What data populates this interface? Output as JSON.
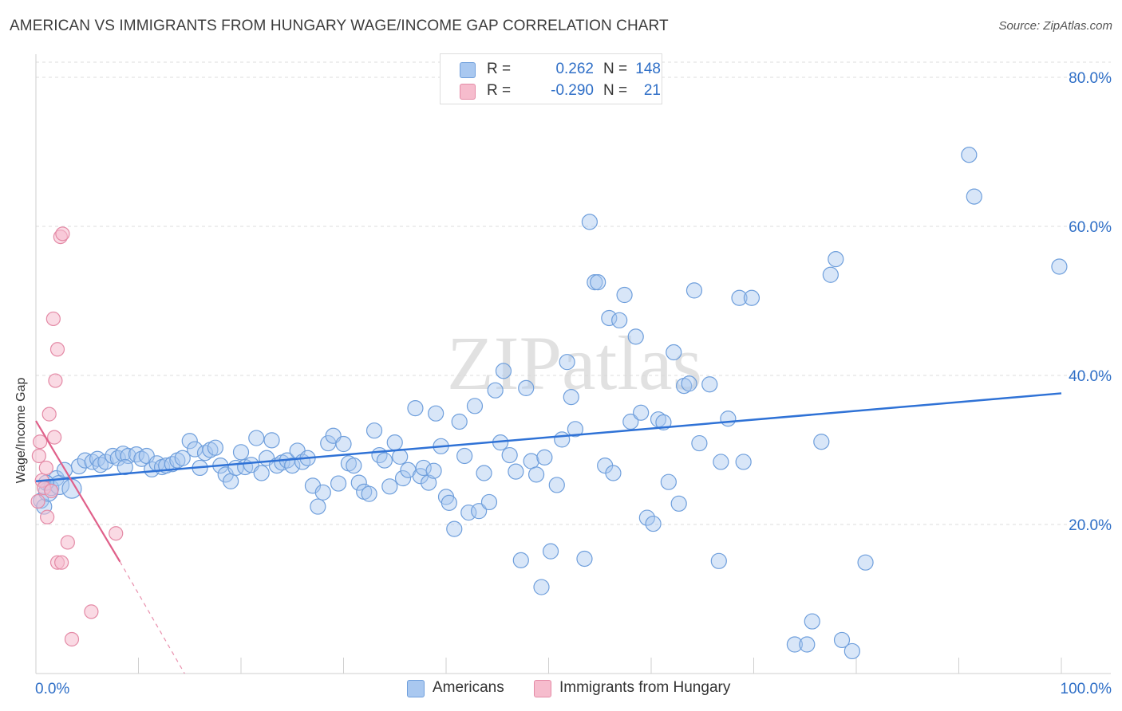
{
  "title": "AMERICAN VS IMMIGRANTS FROM HUNGARY WAGE/INCOME GAP CORRELATION CHART",
  "source": "Source: ZipAtlas.com",
  "watermark": "ZIPatlas",
  "legend_stats": [
    {
      "label_r": "R =",
      "r": "0.262",
      "label_n": "N =",
      "n": "148",
      "color": "#a9c8f0",
      "border": "#6f9fdc"
    },
    {
      "label_r": "R =",
      "r": "-0.290",
      "label_n": "N =",
      "n": "21",
      "color": "#f6bccd",
      "border": "#e48aa6"
    }
  ],
  "legend_series": [
    {
      "name": "Americans",
      "color": "#a9c8f0",
      "border": "#6f9fdc"
    },
    {
      "name": "Immigrants from Hungary",
      "color": "#f6bccd",
      "border": "#e48aa6"
    }
  ],
  "chart_data": {
    "type": "scatter",
    "title": "AMERICAN VS IMMIGRANTS FROM HUNGARY WAGE/INCOME GAP CORRELATION CHART",
    "xlabel": "",
    "ylabel": "Wage/Income Gap",
    "xlim": [
      0,
      100
    ],
    "ylim": [
      0,
      80
    ],
    "x_tick_labels": [
      "0.0%",
      "100.0%"
    ],
    "y_tick_labels": [
      {
        "value": 20,
        "label": "20.0%"
      },
      {
        "value": 40,
        "label": "40.0%"
      },
      {
        "value": 60,
        "label": "60.0%"
      },
      {
        "value": 80,
        "label": "80.0%"
      }
    ],
    "series": [
      {
        "name": "Americans",
        "color": "#6f9fdc",
        "fill": "#a9c8f0",
        "trend": {
          "x0": 0,
          "y0": 25.8,
          "x1": 100,
          "y1": 37.6,
          "color": "#2f72d6"
        },
        "points": [
          [
            0.5,
            23.2
          ],
          [
            0.8,
            22.4
          ],
          [
            1.2,
            24.4
          ],
          [
            1.5,
            24.9
          ],
          [
            2.0,
            26.2
          ],
          [
            2.3,
            25.3
          ],
          [
            2.8,
            27.3
          ],
          [
            3.5,
            24.8
          ],
          [
            4.2,
            27.8
          ],
          [
            4.8,
            28.6
          ],
          [
            5.5,
            28.4
          ],
          [
            6.0,
            28.8
          ],
          [
            6.3,
            28.0
          ],
          [
            6.8,
            28.4
          ],
          [
            7.5,
            29.2
          ],
          [
            8.0,
            28.9
          ],
          [
            8.5,
            29.5
          ],
          [
            9.0,
            29.2
          ],
          [
            8.7,
            27.7
          ],
          [
            9.8,
            29.4
          ],
          [
            10.3,
            28.8
          ],
          [
            10.8,
            29.2
          ],
          [
            11.3,
            27.4
          ],
          [
            11.8,
            28.2
          ],
          [
            12.3,
            27.7
          ],
          [
            12.7,
            27.9
          ],
          [
            13.3,
            28.1
          ],
          [
            13.8,
            28.6
          ],
          [
            14.3,
            28.9
          ],
          [
            15.0,
            31.2
          ],
          [
            15.5,
            30.1
          ],
          [
            16.0,
            27.6
          ],
          [
            16.5,
            29.6
          ],
          [
            17.0,
            30.0
          ],
          [
            17.5,
            30.3
          ],
          [
            18.0,
            27.9
          ],
          [
            18.5,
            26.7
          ],
          [
            19.0,
            25.8
          ],
          [
            19.5,
            27.6
          ],
          [
            20.0,
            29.7
          ],
          [
            20.4,
            27.7
          ],
          [
            21.0,
            28.0
          ],
          [
            21.5,
            31.6
          ],
          [
            22.0,
            26.9
          ],
          [
            22.5,
            28.9
          ],
          [
            23.0,
            31.3
          ],
          [
            23.5,
            27.9
          ],
          [
            24.0,
            28.3
          ],
          [
            24.5,
            28.6
          ],
          [
            25.0,
            27.9
          ],
          [
            25.5,
            29.9
          ],
          [
            26.0,
            28.4
          ],
          [
            26.5,
            28.9
          ],
          [
            27.0,
            25.2
          ],
          [
            27.5,
            22.4
          ],
          [
            28.0,
            24.3
          ],
          [
            28.5,
            30.9
          ],
          [
            29.0,
            31.9
          ],
          [
            29.5,
            25.5
          ],
          [
            30.0,
            30.8
          ],
          [
            30.5,
            28.2
          ],
          [
            31.0,
            27.9
          ],
          [
            31.5,
            25.6
          ],
          [
            32.0,
            24.4
          ],
          [
            32.5,
            24.1
          ],
          [
            33.0,
            32.6
          ],
          [
            33.5,
            29.3
          ],
          [
            34.0,
            28.6
          ],
          [
            34.5,
            25.1
          ],
          [
            35.0,
            31.0
          ],
          [
            35.5,
            29.1
          ],
          [
            35.8,
            26.2
          ],
          [
            36.3,
            27.3
          ],
          [
            37.0,
            35.6
          ],
          [
            37.5,
            26.5
          ],
          [
            37.8,
            27.6
          ],
          [
            38.3,
            25.6
          ],
          [
            38.8,
            27.2
          ],
          [
            39.0,
            34.9
          ],
          [
            39.5,
            30.5
          ],
          [
            40.0,
            23.7
          ],
          [
            40.3,
            22.9
          ],
          [
            40.8,
            19.4
          ],
          [
            41.3,
            33.8
          ],
          [
            41.8,
            29.2
          ],
          [
            42.2,
            21.6
          ],
          [
            42.8,
            35.9
          ],
          [
            43.2,
            21.8
          ],
          [
            43.7,
            26.9
          ],
          [
            44.2,
            23.0
          ],
          [
            44.8,
            38.0
          ],
          [
            45.3,
            31.0
          ],
          [
            45.6,
            40.6
          ],
          [
            46.2,
            29.3
          ],
          [
            46.8,
            27.1
          ],
          [
            47.3,
            15.2
          ],
          [
            47.8,
            38.3
          ],
          [
            48.3,
            28.5
          ],
          [
            48.8,
            26.7
          ],
          [
            49.3,
            11.6
          ],
          [
            49.6,
            29.0
          ],
          [
            50.2,
            16.4
          ],
          [
            50.8,
            25.3
          ],
          [
            51.3,
            31.4
          ],
          [
            51.8,
            41.8
          ],
          [
            52.2,
            37.1
          ],
          [
            52.6,
            32.8
          ],
          [
            53.5,
            15.4
          ],
          [
            54.0,
            60.6
          ],
          [
            54.5,
            52.5
          ],
          [
            54.8,
            52.5
          ],
          [
            55.5,
            27.9
          ],
          [
            55.9,
            47.7
          ],
          [
            56.3,
            26.9
          ],
          [
            56.9,
            47.4
          ],
          [
            57.4,
            50.8
          ],
          [
            58.0,
            33.8
          ],
          [
            58.5,
            45.2
          ],
          [
            59.0,
            35.0
          ],
          [
            59.6,
            20.9
          ],
          [
            60.2,
            20.1
          ],
          [
            60.7,
            34.1
          ],
          [
            61.2,
            33.7
          ],
          [
            61.7,
            25.7
          ],
          [
            62.2,
            43.1
          ],
          [
            62.7,
            22.8
          ],
          [
            63.2,
            38.6
          ],
          [
            63.7,
            38.9
          ],
          [
            64.2,
            51.4
          ],
          [
            64.7,
            30.9
          ],
          [
            65.7,
            38.8
          ],
          [
            66.6,
            15.1
          ],
          [
            66.8,
            28.4
          ],
          [
            67.5,
            34.2
          ],
          [
            68.6,
            50.4
          ],
          [
            69.0,
            28.4
          ],
          [
            69.8,
            50.4
          ],
          [
            74.0,
            3.9
          ],
          [
            75.2,
            3.9
          ],
          [
            75.7,
            7.0
          ],
          [
            76.6,
            31.1
          ],
          [
            77.5,
            53.5
          ],
          [
            78.0,
            55.6
          ],
          [
            78.6,
            4.5
          ],
          [
            79.6,
            3.0
          ],
          [
            80.9,
            14.9
          ],
          [
            91.0,
            69.6
          ],
          [
            91.5,
            64.0
          ],
          [
            99.8,
            54.6
          ],
          [
            1.0,
            25.6
          ]
        ],
        "point_sizes_note": "a few early points drawn larger"
      },
      {
        "name": "Immigrants from Hungary",
        "color": "#e48aa6",
        "fill": "#f6bccd",
        "trend": {
          "x0": 0,
          "y0": 33.9,
          "x1": 8.2,
          "y1": 15.0,
          "dash_to": {
            "x": 14.5,
            "y": 0
          },
          "color": "#e0608a"
        },
        "points": [
          [
            0.3,
            29.2
          ],
          [
            0.4,
            31.1
          ],
          [
            0.6,
            25.9
          ],
          [
            0.8,
            24.9
          ],
          [
            1.0,
            27.6
          ],
          [
            1.1,
            21.0
          ],
          [
            1.3,
            34.8
          ],
          [
            1.7,
            47.6
          ],
          [
            1.8,
            31.7
          ],
          [
            1.9,
            39.3
          ],
          [
            2.1,
            43.5
          ],
          [
            2.1,
            14.9
          ],
          [
            2.5,
            14.9
          ],
          [
            2.4,
            58.6
          ],
          [
            2.6,
            59.0
          ],
          [
            3.1,
            17.6
          ],
          [
            3.5,
            4.6
          ],
          [
            5.4,
            8.3
          ],
          [
            7.8,
            18.8
          ],
          [
            0.2,
            23.1
          ],
          [
            1.5,
            24.5
          ]
        ]
      }
    ]
  }
}
